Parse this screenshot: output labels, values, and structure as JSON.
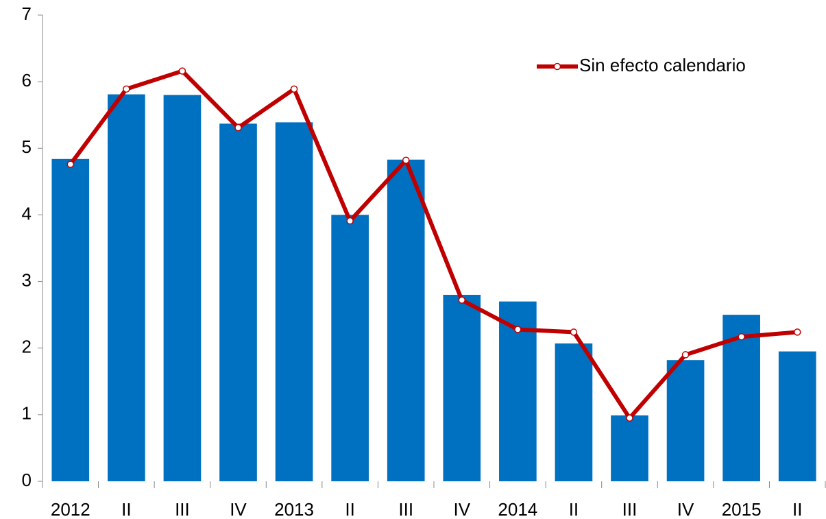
{
  "chart_data": {
    "type": "bar",
    "categories": [
      "2012",
      "II",
      "III",
      "IV",
      "2013",
      "II",
      "III",
      "IV",
      "2014",
      "II",
      "III",
      "IV",
      "2015",
      "II"
    ],
    "series": [
      {
        "type": "bar",
        "color": "#0070c0",
        "values": [
          4.84,
          5.81,
          5.8,
          5.37,
          5.39,
          4.0,
          4.83,
          2.8,
          2.7,
          2.07,
          0.99,
          1.82,
          2.5,
          1.95
        ]
      },
      {
        "type": "line",
        "name": "Sin efecto calendario",
        "color": "#c00000",
        "values": [
          4.76,
          5.89,
          6.16,
          5.31,
          5.89,
          3.91,
          4.82,
          2.72,
          2.28,
          2.24,
          0.95,
          1.9,
          2.17,
          2.24
        ]
      }
    ],
    "ylim": [
      0,
      7
    ],
    "yticks": [
      0,
      1,
      2,
      3,
      4,
      5,
      6,
      7
    ],
    "grid": false,
    "legend": "top-right"
  }
}
